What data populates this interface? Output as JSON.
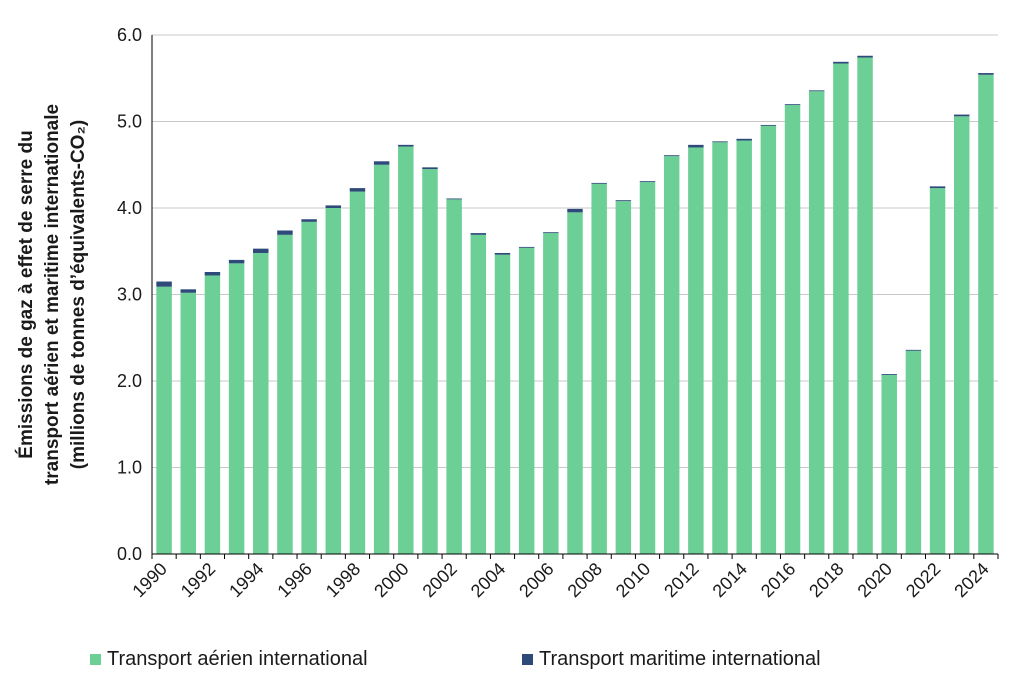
{
  "chart_data": {
    "type": "bar",
    "stacked": true,
    "ylabel_lines": [
      "Émissions de gaz à effet de serre du",
      "transport aérien et maritime internationale",
      "(millions de tonnes d’équivalents-CO₂)"
    ],
    "xlabel": "",
    "ylim": [
      0,
      6
    ],
    "yticks": [
      "0.0",
      "1.0",
      "2.0",
      "3.0",
      "4.0",
      "5.0",
      "6.0"
    ],
    "ytick_values": [
      0,
      1,
      2,
      3,
      4,
      5,
      6
    ],
    "grid": true,
    "legend_position": "bottom",
    "categories": [
      1990,
      1991,
      1992,
      1993,
      1994,
      1995,
      1996,
      1997,
      1998,
      1999,
      2000,
      2001,
      2002,
      2003,
      2004,
      2005,
      2006,
      2007,
      2008,
      2009,
      2010,
      2011,
      2012,
      2013,
      2014,
      2015,
      2016,
      2017,
      2018,
      2019,
      2020,
      2021,
      2022,
      2023,
      2024
    ],
    "xtick_labels": [
      "1990",
      "1992",
      "1994",
      "1996",
      "1998",
      "2000",
      "2002",
      "2004",
      "2006",
      "2008",
      "2010",
      "2012",
      "2014",
      "2016",
      "2018",
      "2020",
      "2022",
      "2024"
    ],
    "series": [
      {
        "name": "Transport aérien international",
        "color": "#6ccf96",
        "values": [
          3.09,
          3.02,
          3.22,
          3.36,
          3.48,
          3.69,
          3.84,
          4.0,
          4.19,
          4.5,
          4.71,
          4.45,
          4.1,
          3.69,
          3.46,
          3.54,
          3.71,
          3.95,
          4.28,
          4.08,
          4.3,
          4.6,
          4.7,
          4.76,
          4.78,
          4.95,
          5.19,
          5.35,
          5.67,
          5.74,
          2.07,
          2.35,
          4.23,
          5.06,
          5.54
        ]
      },
      {
        "name": "Transport maritime international",
        "color": "#2e4a7a",
        "values": [
          0.06,
          0.04,
          0.04,
          0.04,
          0.05,
          0.05,
          0.03,
          0.03,
          0.04,
          0.04,
          0.02,
          0.02,
          0.01,
          0.02,
          0.02,
          0.01,
          0.01,
          0.04,
          0.01,
          0.01,
          0.01,
          0.01,
          0.03,
          0.01,
          0.02,
          0.01,
          0.01,
          0.01,
          0.02,
          0.02,
          0.01,
          0.01,
          0.02,
          0.02,
          0.02
        ]
      }
    ]
  }
}
